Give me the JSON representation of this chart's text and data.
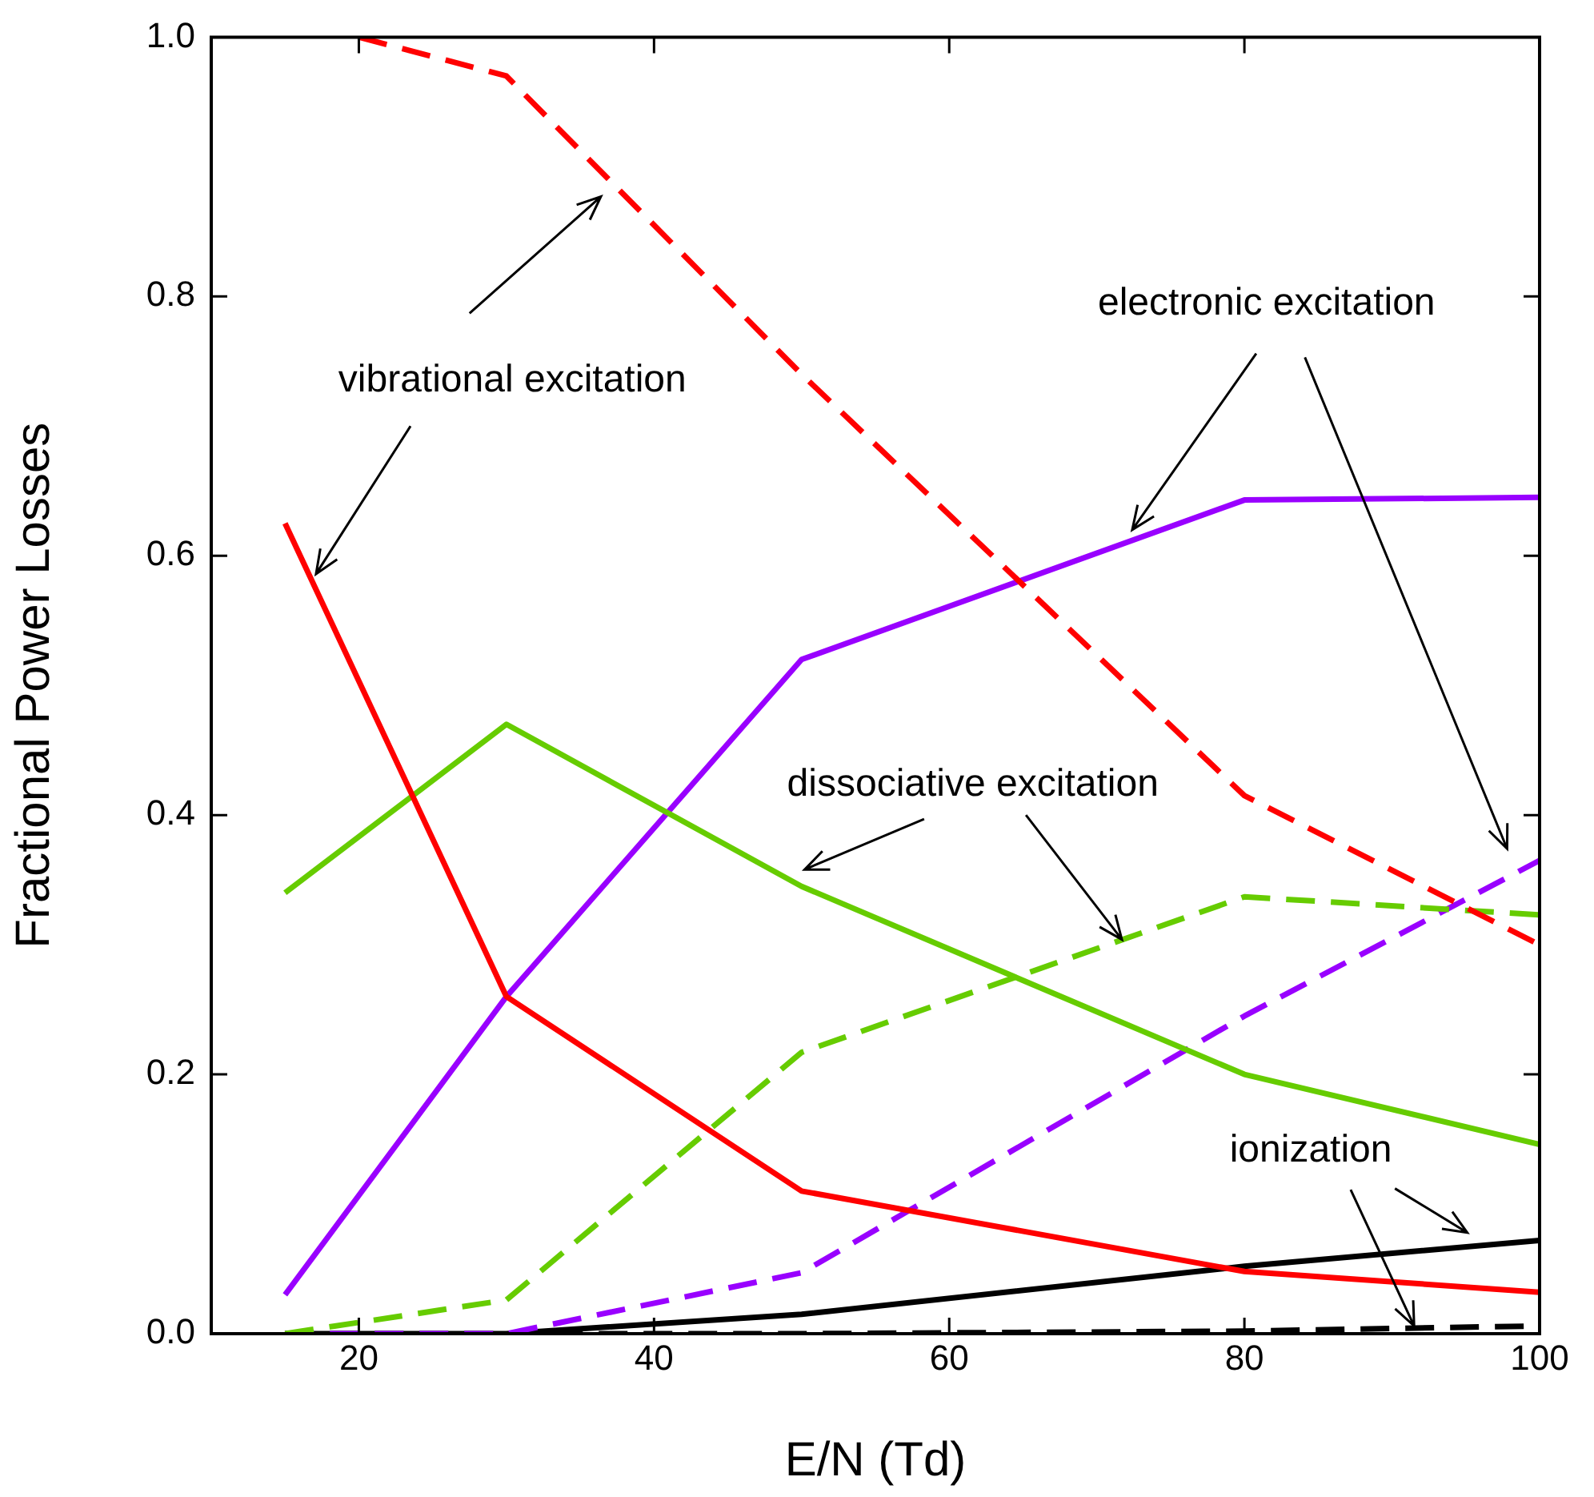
{
  "chart_data": {
    "type": "line",
    "xlabel": "E/N (Td)",
    "ylabel": "Fractional Power Losses",
    "x": [
      15,
      30,
      50,
      80,
      100
    ],
    "series": [
      {
        "color": "#ff0000",
        "line_style": "solid",
        "values": [
          0.625,
          0.26,
          0.11,
          0.048,
          0.032
        ]
      },
      {
        "color": "#ff0000",
        "line_style": "dashed",
        "x": [
          20,
          30,
          50,
          80,
          100
        ],
        "values": [
          1.0,
          0.97,
          0.74,
          0.415,
          0.3
        ]
      },
      {
        "color": "#66cc00",
        "line_style": "solid",
        "values": [
          0.34,
          0.47,
          0.345,
          0.2,
          0.146
        ]
      },
      {
        "color": "#66cc00",
        "line_style": "dashed",
        "values": [
          0,
          0.026,
          0.217,
          0.337,
          0.323
        ]
      },
      {
        "color": "#9900ff",
        "line_style": "solid",
        "values": [
          0.03,
          0.26,
          0.52,
          0.643,
          0.645
        ]
      },
      {
        "color": "#9900ff",
        "line_style": "dashed",
        "values": [
          0,
          0,
          0.047,
          0.245,
          0.365
        ]
      },
      {
        "color": "#000000",
        "line_style": "solid",
        "values": [
          0,
          0,
          0.015,
          0.052,
          0.072
        ]
      },
      {
        "color": "#000000",
        "line_style": "dashed",
        "values": [
          0,
          0,
          0,
          0.002,
          0.006
        ]
      }
    ],
    "xlim": [
      10,
      100
    ],
    "xticks": [
      20,
      40,
      60,
      80,
      100
    ],
    "ylim": [
      0,
      1
    ],
    "yticks": [
      {
        "value": 0,
        "label": "0.0"
      },
      0.2,
      0.4,
      0.6,
      0.8,
      {
        "value": 1,
        "label": "1.0"
      }
    ],
    "grid": false,
    "legend": false,
    "marker": "none",
    "annotations": [
      {
        "text": "vibrational excitation",
        "x": 17.1,
        "y": 0.586
      },
      {
        "text": "electronic excitation",
        "x": 72.4,
        "y": 0.62
      },
      {
        "text": "dissociative excitation",
        "x": 71.7,
        "y": 0.304
      },
      {
        "text": "ionization",
        "x": 91.5,
        "y": 0.006
      }
    ]
  }
}
